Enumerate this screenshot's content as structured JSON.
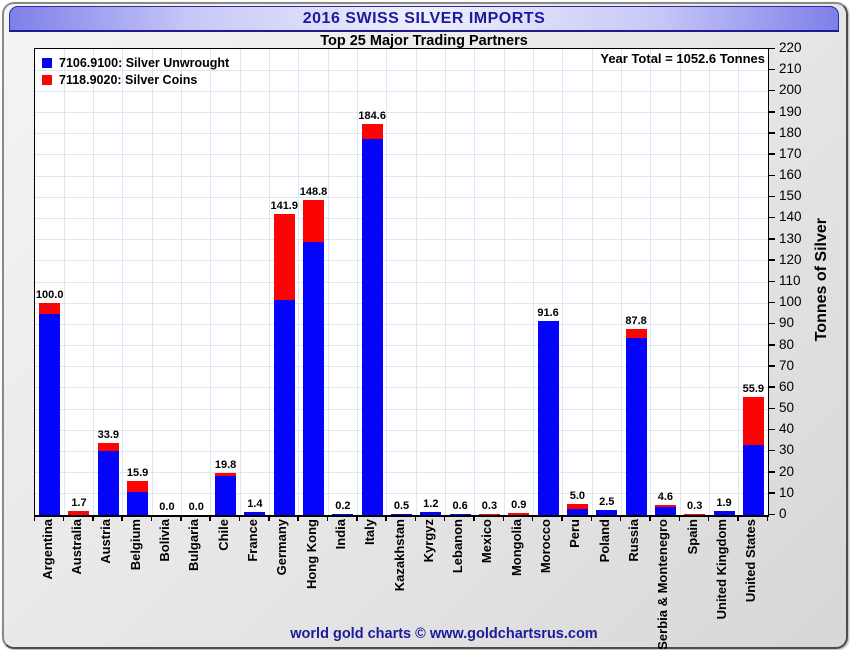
{
  "header": {
    "title": "2016 SWISS SILVER IMPORTS",
    "subtitle": "Top 25 Major Trading Partners"
  },
  "annotations": {
    "year_total": "Year Total = 1052.6 Tonnes"
  },
  "footer": {
    "credit": "world gold charts © www.goldchartsrus.com"
  },
  "colors": {
    "unwrought_blue": "#0404fc",
    "coins_red": "#fc0404",
    "grid": "#dbe7f5",
    "title_navy": "#1b1b9c"
  },
  "chart_data": {
    "type": "bar",
    "stacked": true,
    "title": "2016 SWISS SILVER IMPORTS",
    "subtitle": "Top 25 Major Trading Partners",
    "ylabel": "Tonnes of Silver",
    "ylim": [
      0,
      220
    ],
    "ytick_step": 10,
    "grid": true,
    "legend_position": "top-left",
    "categories": [
      "Argentina",
      "Australia",
      "Austria",
      "Belgium",
      "Bolivia",
      "Bulgaria",
      "Chile",
      "France",
      "Germany",
      "Hong Kong",
      "India",
      "Italy",
      "Kazakhstan",
      "Kyrgyz",
      "Lebanon",
      "Mexico",
      "Mongolia",
      "Morocco",
      "Peru",
      "Poland",
      "Russia",
      "Serbia & Montenegro",
      "Spain",
      "United Kingdom",
      "United States"
    ],
    "series": [
      {
        "name": "7106.9100: Silver Unwrought",
        "color": "#0404fc",
        "values": [
          95.0,
          0.0,
          30.0,
          11.0,
          0.0,
          0.0,
          18.6,
          1.4,
          101.5,
          129.0,
          0.2,
          177.6,
          0.5,
          1.2,
          0.6,
          0.0,
          0.0,
          91.6,
          2.8,
          2.5,
          83.8,
          3.8,
          0.0,
          1.9,
          32.9
        ]
      },
      {
        "name": "7118.9020: Silver Coins",
        "color": "#fc0404",
        "values": [
          5.0,
          1.7,
          3.9,
          4.9,
          0.0,
          0.0,
          1.2,
          0.0,
          40.4,
          19.8,
          0.0,
          7.0,
          0.0,
          0.0,
          0.0,
          0.3,
          0.9,
          0.0,
          2.2,
          0.0,
          4.0,
          0.8,
          0.3,
          0.0,
          23.0
        ]
      }
    ],
    "totals": [
      100.0,
      1.7,
      33.9,
      15.9,
      0.0,
      0.0,
      19.8,
      1.4,
      141.9,
      148.8,
      0.2,
      184.6,
      0.5,
      1.2,
      0.6,
      0.3,
      0.9,
      91.6,
      5.0,
      2.5,
      87.8,
      4.6,
      0.3,
      1.9,
      55.9
    ]
  }
}
